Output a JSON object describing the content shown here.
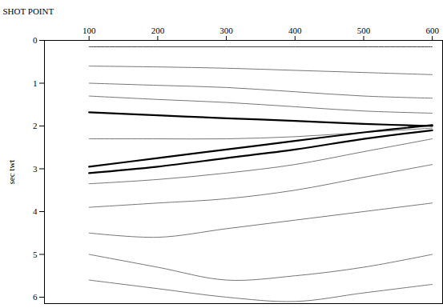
{
  "chart_data": {
    "type": "line",
    "x_label": "SHOT POINT",
    "y_label": "sec twt",
    "x": [
      100,
      200,
      300,
      400,
      500,
      600
    ],
    "xlim": [
      35,
      615
    ],
    "xticks": [
      100,
      200,
      300,
      400,
      500,
      600
    ],
    "ylim": [
      6.15,
      0
    ],
    "yticks": [
      0,
      1,
      2,
      3,
      4,
      5,
      6
    ],
    "series": [
      {
        "color": "#444444",
        "values": [
          0.15,
          0.15,
          0.15,
          0.15,
          0.15,
          0.15
        ]
      },
      {
        "color": "#777777",
        "values": [
          0.6,
          0.62,
          0.65,
          0.7,
          0.75,
          0.8
        ]
      },
      {
        "color": "#777777",
        "values": [
          1.0,
          1.05,
          1.1,
          1.2,
          1.3,
          1.35
        ]
      },
      {
        "color": "#777777",
        "values": [
          1.3,
          1.38,
          1.45,
          1.55,
          1.65,
          1.7
        ]
      },
      {
        "color": "#000000",
        "values": [
          1.68,
          1.75,
          1.82,
          1.88,
          1.95,
          2.0
        ]
      },
      {
        "color": "#777777",
        "values": [
          2.3,
          2.3,
          2.3,
          2.25,
          2.15,
          2.05
        ]
      },
      {
        "color": "#000000",
        "values": [
          2.95,
          2.75,
          2.55,
          2.35,
          2.15,
          1.98
        ]
      },
      {
        "color": "#000000",
        "values": [
          3.1,
          2.95,
          2.75,
          2.55,
          2.3,
          2.1
        ]
      },
      {
        "color": "#777777",
        "values": [
          3.35,
          3.25,
          3.1,
          2.9,
          2.6,
          2.3
        ]
      },
      {
        "color": "#777777",
        "values": [
          3.9,
          3.8,
          3.7,
          3.5,
          3.2,
          2.9
        ]
      },
      {
        "color": "#777777",
        "values": [
          4.5,
          4.6,
          4.4,
          4.2,
          4.0,
          3.8
        ]
      },
      {
        "color": "#777777",
        "values": [
          5.0,
          5.3,
          5.6,
          5.5,
          5.3,
          5.0
        ]
      },
      {
        "color": "#777777",
        "values": [
          5.6,
          5.8,
          6.0,
          6.1,
          5.9,
          5.7
        ]
      }
    ]
  }
}
